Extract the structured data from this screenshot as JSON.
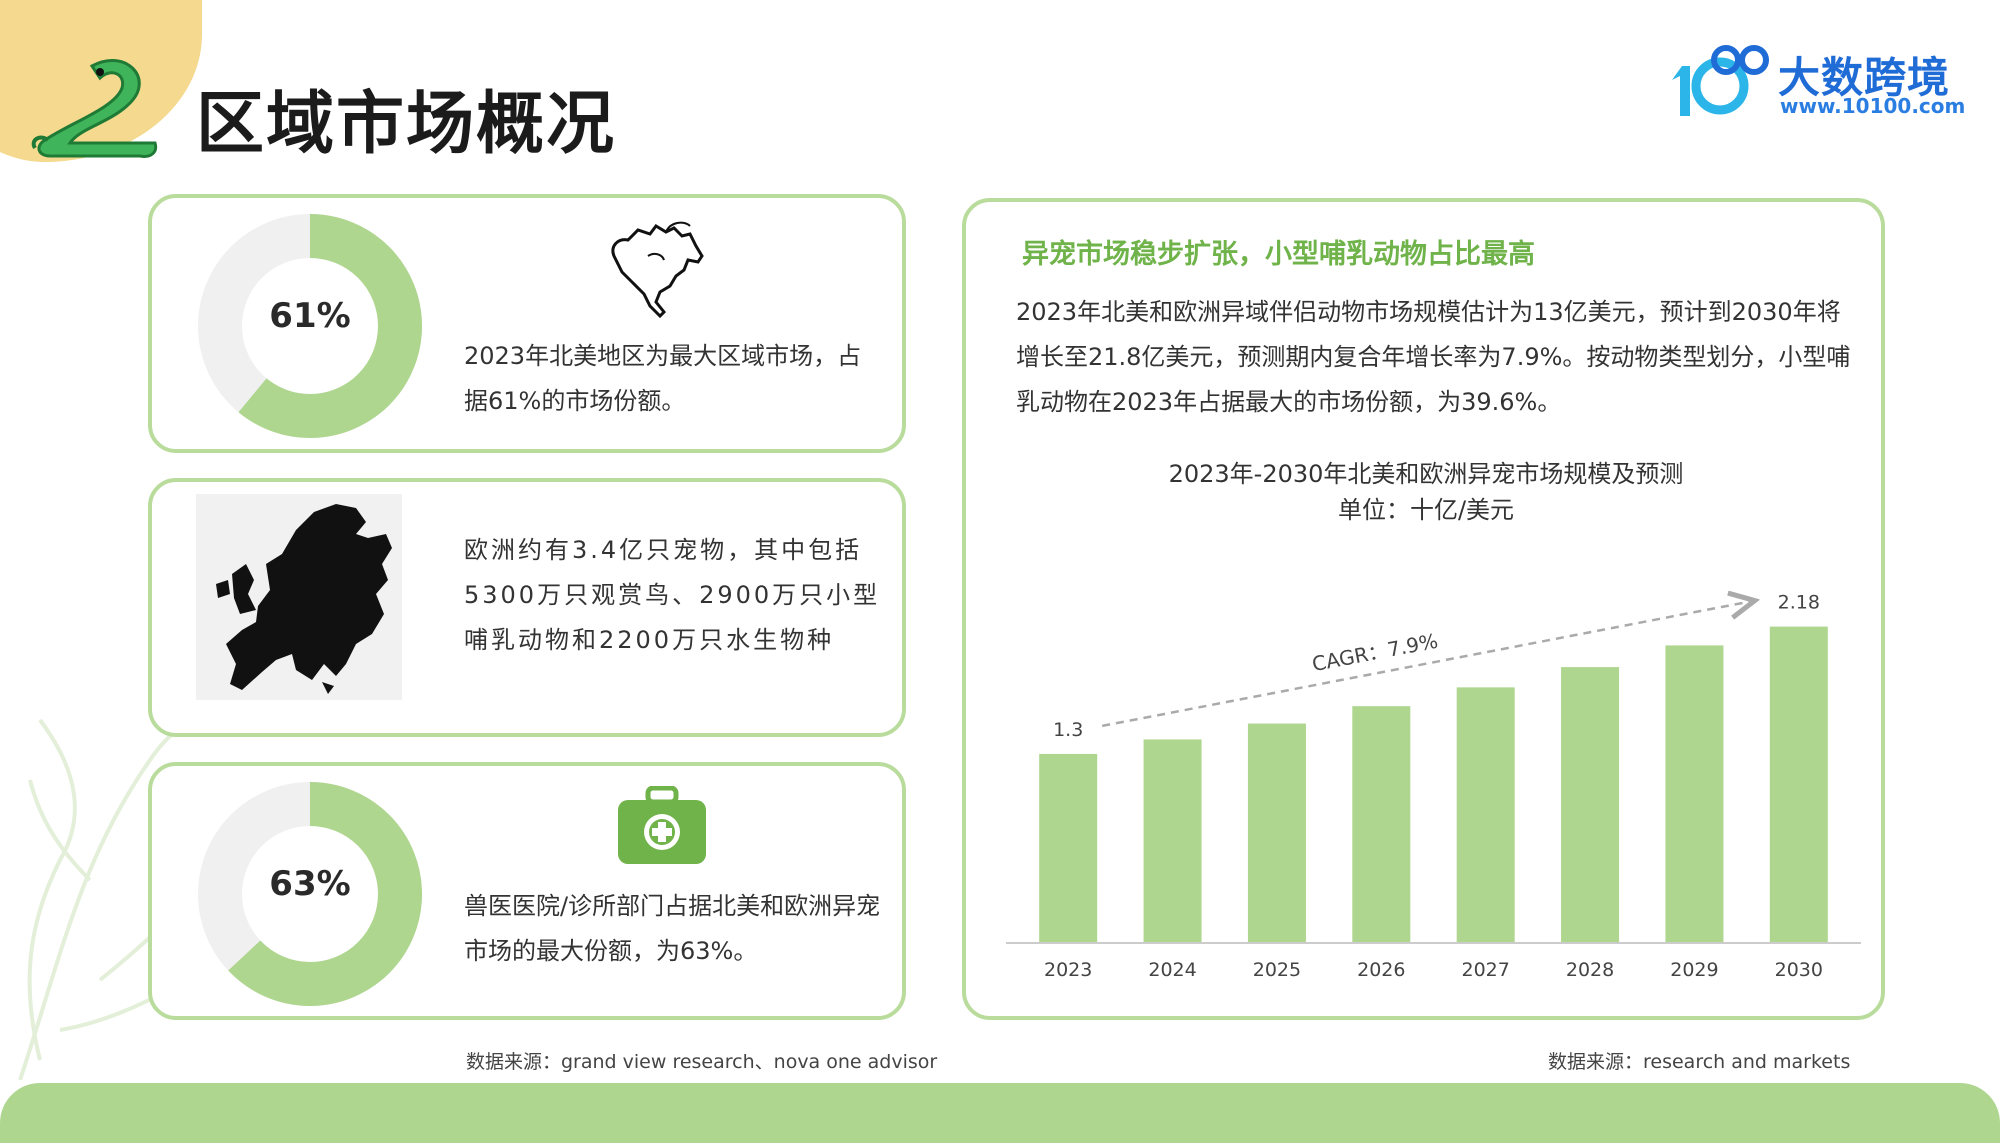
{
  "page": {
    "title": "区域市场概况"
  },
  "logo": {
    "name": "大数跨境",
    "url": "www.10100.com"
  },
  "cards": [
    {
      "donut_label": "61%",
      "donut_value": 61,
      "icon": "north-america-map-icon",
      "text": "2023年北美地区为最大区域市场，占据61%的市场份额。"
    },
    {
      "icon": "europe-map-icon",
      "text": "欧洲约有3.4亿只宠物，其中包括5300万只观赏鸟、2900万只小型哺乳动物和2200万只水生物种"
    },
    {
      "donut_label": "63%",
      "donut_value": 63,
      "icon": "medical-kit-icon",
      "text": "兽医医院/诊所部门占据北美和欧洲异宠市场的最大份额，为63%。"
    }
  ],
  "right_card": {
    "heading": "异宠市场稳步扩张，小型哺乳动物占比最高",
    "paragraph": "2023年北美和欧洲异域伴侣动物市场规模估计为13亿美元，预计到2030年将增长至21.8亿美元，预测期内复合年增长率为7.9%。按动物类型划分，小型哺乳动物在2023年占据最大的市场份额，为39.6%。"
  },
  "sources": {
    "left": "数据来源：grand view research、nova one advisor",
    "right": "数据来源：research and markets"
  },
  "colors": {
    "accent_green": "#aed68e",
    "heading_green": "#6fb34a",
    "donut_track": "#f0f0f0",
    "corner_yellow": "#f4d98e"
  },
  "chart_data": {
    "type": "bar",
    "title": "2023年-2030年北美和欧洲异宠市场规模及预测",
    "subtitle": "单位：十亿/美元",
    "categories": [
      "2023",
      "2024",
      "2025",
      "2026",
      "2027",
      "2028",
      "2029",
      "2030"
    ],
    "values": [
      1.3,
      1.4,
      1.51,
      1.63,
      1.76,
      1.9,
      2.05,
      2.18
    ],
    "data_labels": {
      "2023": "1.3",
      "2030": "2.18"
    },
    "annotation": "CAGR：7.9%",
    "ylim": [
      0,
      2.35
    ],
    "grid": false,
    "legend": false
  }
}
